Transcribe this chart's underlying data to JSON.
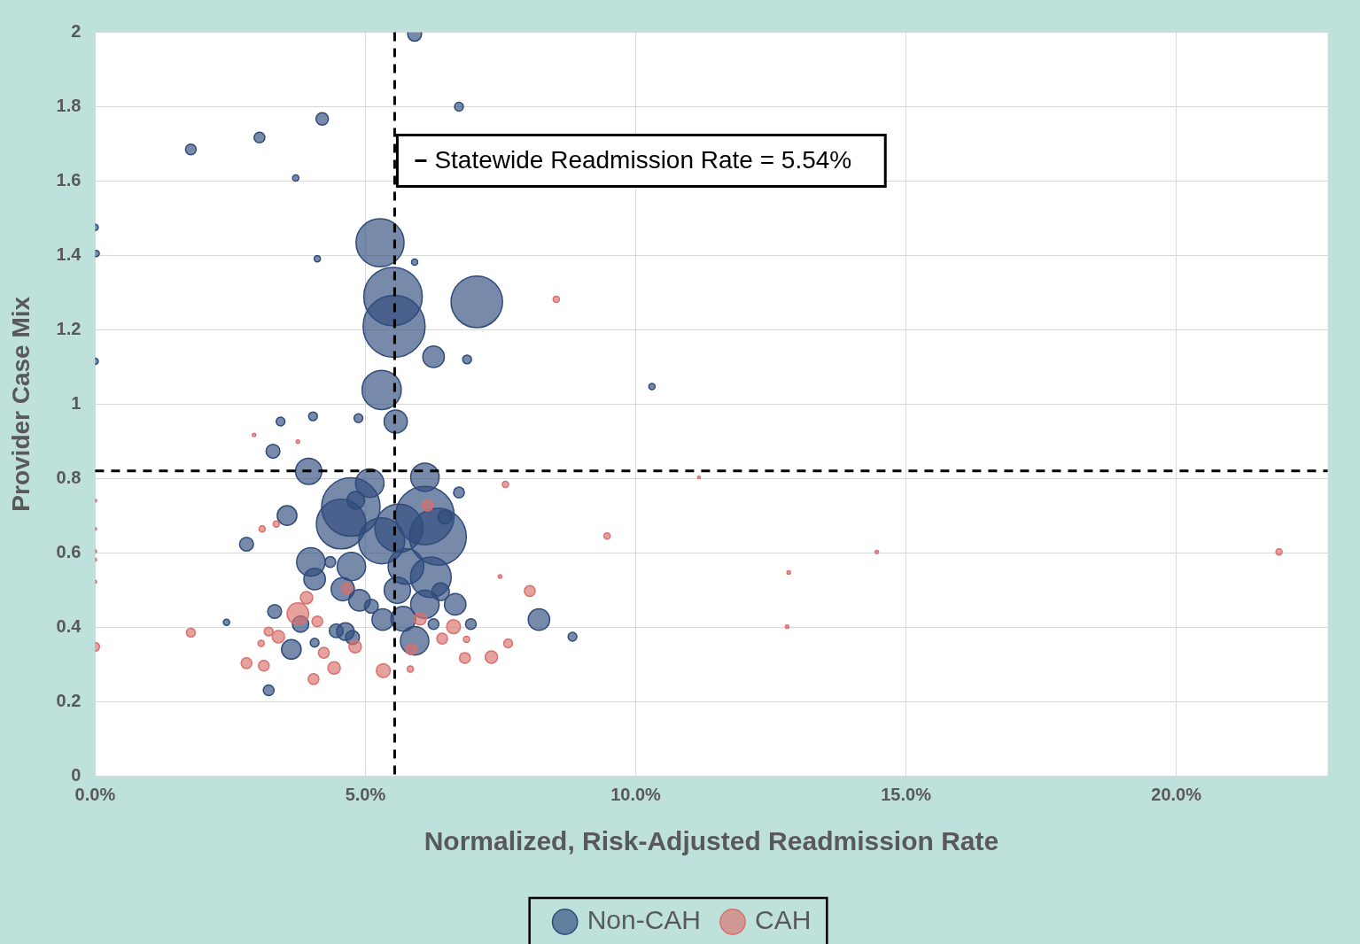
{
  "chart_data": {
    "type": "bubble",
    "xlabel": "Normalized, Risk-Adjusted Readmission Rate",
    "ylabel": "Provider Case Mix",
    "xlim": [
      0,
      22.8
    ],
    "xticks": [
      {
        "value": 0,
        "label": "0.0%"
      },
      {
        "value": 5,
        "label": "5.0%"
      },
      {
        "value": 10,
        "label": "10.0%"
      },
      {
        "value": 15,
        "label": "15.0%"
      },
      {
        "value": 20,
        "label": "20.0%"
      }
    ],
    "ylim": [
      0,
      2
    ],
    "yticks": [
      0,
      0.2,
      0.4,
      0.6,
      0.8,
      1,
      1.2,
      1.4,
      1.6,
      1.8,
      2
    ],
    "grid": true,
    "legend": "bottom",
    "ref_lines": [
      {
        "axis": "x",
        "value": 5.54,
        "label": "Statewide Readmission Rate = 5.54%",
        "color": "#000000",
        "line_style": "dashed"
      },
      {
        "axis": "y",
        "value": 0.82,
        "label": null,
        "color": "#000000",
        "line_style": "dashed"
      }
    ],
    "series": [
      {
        "name": "Non-CAH",
        "color": "#2f4b7c",
        "x": [
          5.91,
          6.73,
          1.77,
          3.04,
          4.2,
          3.71,
          0,
          0.02,
          0,
          5.27,
          5.51,
          5.53,
          7.06,
          4.11,
          5.91,
          6.26,
          6.88,
          5.3,
          5.56,
          10.3,
          3.43,
          4.03,
          4.87,
          3.29,
          3.95,
          5.08,
          6.1,
          6.73,
          3.55,
          4.73,
          4.55,
          4.82,
          2.8,
          3.99,
          4.06,
          4.35,
          4.74,
          4.58,
          4.89,
          5.11,
          5.3,
          5.62,
          6.1,
          6.34,
          6.47,
          6.21,
          5.75,
          5.59,
          6.1,
          6.39,
          6.66,
          5.32,
          5.7,
          5.91,
          6.26,
          6.95,
          8.21,
          8.83,
          3.32,
          3.8,
          4.06,
          4.46,
          4.63,
          4.76,
          3.63,
          3.21,
          2.43
        ],
        "values": [
          1.995,
          1.8,
          1.685,
          1.717,
          1.767,
          1.608,
          1.475,
          1.405,
          1.115,
          1.434,
          1.289,
          1.209,
          1.275,
          1.391,
          1.382,
          1.127,
          1.12,
          1.038,
          0.953,
          1.047,
          0.953,
          0.967,
          0.962,
          0.873,
          0.819,
          0.787,
          0.803,
          0.762,
          0.7,
          0.723,
          0.677,
          0.741,
          0.623,
          0.575,
          0.529,
          0.575,
          0.563,
          0.502,
          0.472,
          0.456,
          0.632,
          0.666,
          0.7,
          0.643,
          0.696,
          0.534,
          0.563,
          0.499,
          0.461,
          0.495,
          0.461,
          0.42,
          0.422,
          0.363,
          0.408,
          0.408,
          0.42,
          0.374,
          0.442,
          0.408,
          0.358,
          0.39,
          0.388,
          0.372,
          0.34,
          0.23,
          0.413
        ],
        "sizes": [
          0.05,
          0.02,
          0.03,
          0.03,
          0.04,
          0.01,
          0.01,
          0.01,
          0.01,
          0.6,
          0.89,
          1,
          0.69,
          0.01,
          0.01,
          0.12,
          0.02,
          0.4,
          0.14,
          0.01,
          0.02,
          0.02,
          0.02,
          0.05,
          0.18,
          0.21,
          0.21,
          0.03,
          0.1,
          0.89,
          0.64,
          0.08,
          0.05,
          0.21,
          0.12,
          0.03,
          0.21,
          0.14,
          0.12,
          0.05,
          0.55,
          0.6,
          0.89,
          0.84,
          0.05,
          0.43,
          0.33,
          0.18,
          0.21,
          0.08,
          0.12,
          0.12,
          0.16,
          0.21,
          0.03,
          0.03,
          0.12,
          0.02,
          0.05,
          0.07,
          0.02,
          0.05,
          0.08,
          0.05,
          0.1,
          0.03,
          0.01
        ]
      },
      {
        "name": "CAH",
        "color": "#d9706b",
        "x": [
          0,
          0,
          0,
          0,
          0,
          0,
          1.77,
          2.8,
          3.12,
          3.07,
          3.21,
          3.39,
          3.75,
          3.91,
          4.11,
          4.23,
          4.42,
          4.04,
          4.81,
          4.66,
          5.33,
          5.85,
          5.83,
          6.01,
          6.15,
          6.42,
          6.63,
          6.87,
          6.84,
          7.33,
          7.64,
          8.04,
          7.49,
          7.59,
          8.53,
          9.47,
          11.17,
          12.83,
          12.8,
          14.46,
          21.9,
          3.09,
          3.35,
          2.94,
          3.75
        ],
        "values": [
          0.347,
          0.74,
          0.664,
          0.604,
          0.581,
          0.522,
          0.385,
          0.303,
          0.296,
          0.356,
          0.388,
          0.374,
          0.436,
          0.479,
          0.415,
          0.331,
          0.29,
          0.26,
          0.347,
          0.504,
          0.283,
          0.34,
          0.287,
          0.422,
          0.727,
          0.369,
          0.401,
          0.367,
          0.317,
          0.319,
          0.356,
          0.497,
          0.536,
          0.784,
          1.282,
          0.645,
          0.803,
          0.547,
          0.401,
          0.602,
          0.602,
          0.664,
          0.677,
          0.917,
          0.899
        ],
        "sizes": [
          0.02,
          0.002,
          0.002,
          0.002,
          0.002,
          0.002,
          0.02,
          0.03,
          0.03,
          0.01,
          0.02,
          0.04,
          0.12,
          0.04,
          0.03,
          0.03,
          0.04,
          0.03,
          0.04,
          0.03,
          0.05,
          0.03,
          0.01,
          0.04,
          0.03,
          0.03,
          0.05,
          0.01,
          0.03,
          0.04,
          0.02,
          0.03,
          0.003,
          0.01,
          0.01,
          0.01,
          0.002,
          0.003,
          0.003,
          0.003,
          0.01,
          0.01,
          0.01,
          0.003,
          0.003
        ]
      }
    ]
  }
}
